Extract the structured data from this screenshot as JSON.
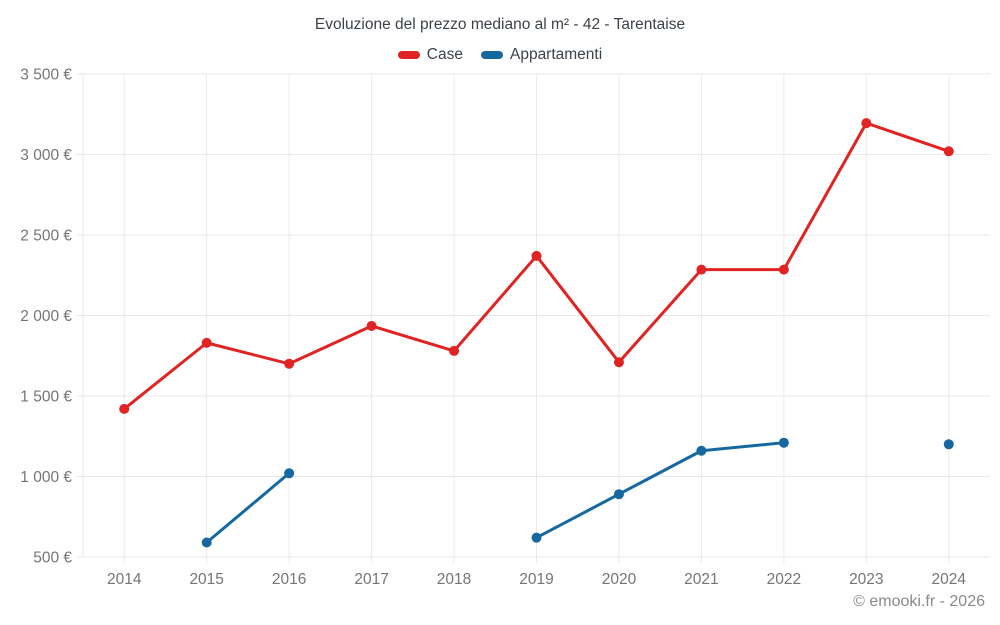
{
  "title": "Evoluzione del prezzo mediano al m² - 42 - Tarentaise",
  "legend": [
    {
      "label": "Case",
      "color": "#e02424"
    },
    {
      "label": "Appartamenti",
      "color": "#1568a0"
    }
  ],
  "copyright": "© emooki.fr - 2026",
  "colors": {
    "case_red": "#e02424",
    "appartamenti_blue": "#1568a0",
    "gridline": "#e9e9e9",
    "axis_label": "#757575",
    "title_text": "#3d434b"
  },
  "chart_data": {
    "type": "line",
    "title": "Evoluzione del prezzo mediano al m² - 42 - Tarentaise",
    "categories": [
      "2014",
      "2015",
      "2016",
      "2017",
      "2018",
      "2019",
      "2020",
      "2021",
      "2022",
      "2023",
      "2024"
    ],
    "series": [
      {
        "name": "Case",
        "color": "#e02424",
        "values": [
          1420,
          1830,
          1700,
          1935,
          1780,
          2370,
          1710,
          2285,
          2285,
          3195,
          3020
        ]
      },
      {
        "name": "Appartamenti",
        "color": "#1568a0",
        "values": [
          null,
          590,
          1020,
          null,
          null,
          620,
          890,
          1160,
          1210,
          null,
          1200
        ]
      }
    ],
    "xlabel": "",
    "ylabel": "",
    "ylim": [
      500,
      3500
    ],
    "y_ticks": [
      500,
      1000,
      1500,
      2000,
      2500,
      3000,
      3500
    ],
    "y_tick_labels": [
      "500 €",
      "1 000 €",
      "1 500 €",
      "2 000 €",
      "2 500 €",
      "3 000 €",
      "3 500 €"
    ],
    "grid": true,
    "legend_position": "top"
  }
}
